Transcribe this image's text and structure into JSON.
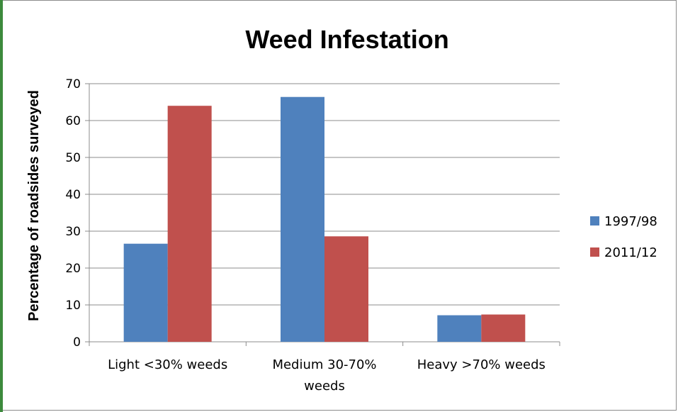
{
  "chart_data": {
    "type": "bar",
    "title": "Weed Infestation",
    "xlabel": "",
    "ylabel": "Percentage of roadsides surveyed",
    "categories": [
      [
        "Light <30% weeds"
      ],
      [
        "Medium 30-70%",
        "weeds"
      ],
      [
        "Heavy >70% weeds"
      ]
    ],
    "series": [
      {
        "name": "1997/98",
        "color": "#4f81bd",
        "values": [
          26.6,
          66.4,
          7.2
        ]
      },
      {
        "name": "2011/12",
        "color": "#c0504d",
        "values": [
          64.0,
          28.6,
          7.4
        ]
      }
    ],
    "ylim": [
      0,
      70
    ],
    "yticks": [
      0,
      10,
      20,
      30,
      40,
      50,
      60,
      70
    ],
    "grid": true,
    "legend": "right"
  }
}
